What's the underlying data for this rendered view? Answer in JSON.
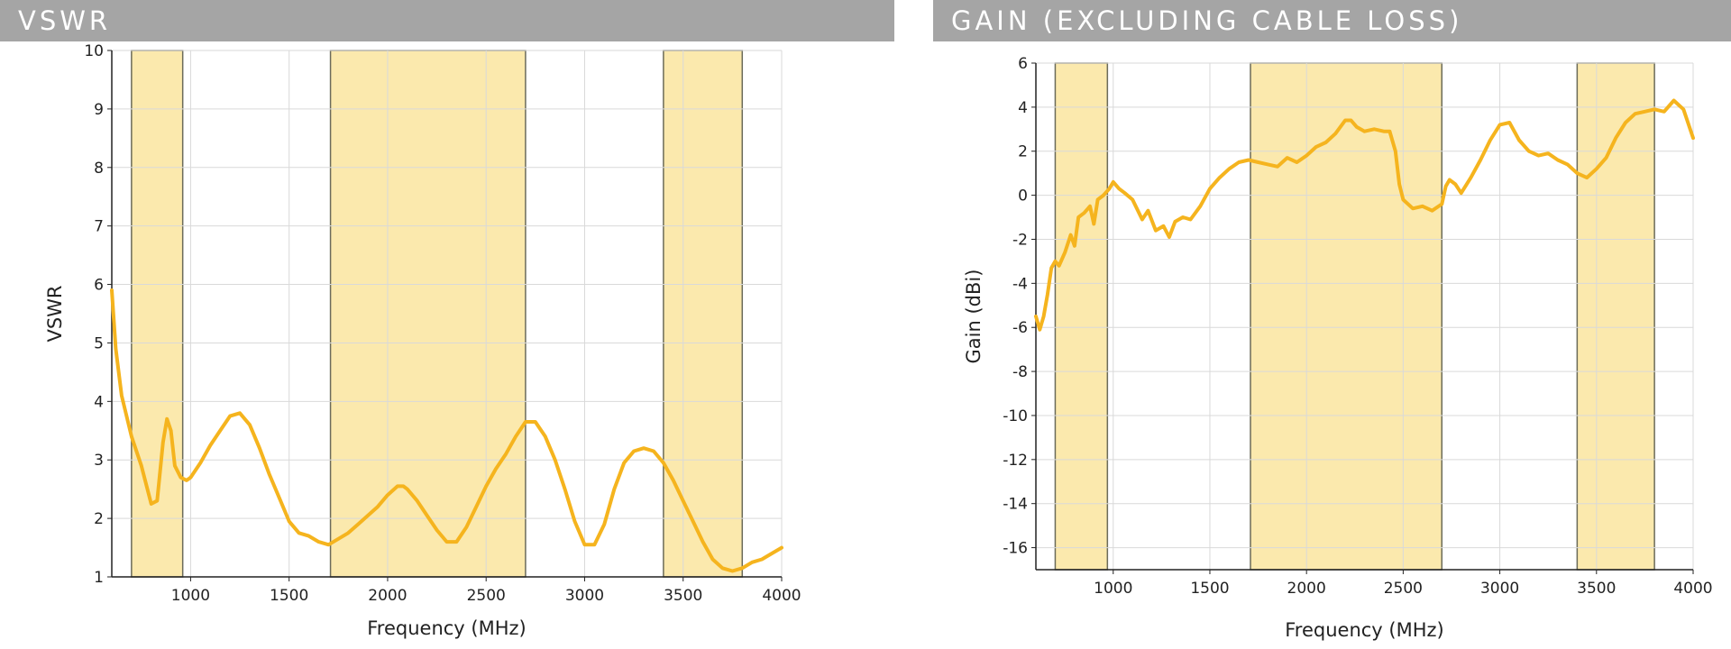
{
  "headers": {
    "left": "VSWR",
    "right": "GAIN (EXCLUDING CABLE LOSS)"
  },
  "colors": {
    "header_bg": "#a5a5a5",
    "band_fill": "#fbe9ad",
    "curve": "#f5b41e",
    "grid": "#d9d9d9"
  },
  "chart_data": [
    {
      "type": "line",
      "title": "VSWR",
      "xlabel": "Frequency (MHz)",
      "ylabel": "VSWR",
      "xlim": [
        600,
        4000
      ],
      "ylim": [
        1,
        10
      ],
      "x_ticks": [
        1000,
        1500,
        2000,
        2500,
        3000,
        3500,
        4000
      ],
      "y_ticks": [
        1,
        2,
        3,
        4,
        5,
        6,
        7,
        8,
        9,
        10
      ],
      "grid": true,
      "shaded_bands": [
        [
          700,
          960
        ],
        [
          1710,
          2700
        ],
        [
          3400,
          3800
        ]
      ],
      "series": [
        {
          "x": [
            600,
            620,
            650,
            700,
            750,
            800,
            830,
            860,
            880,
            900,
            920,
            950,
            980,
            1000,
            1050,
            1100,
            1150,
            1200,
            1250,
            1300,
            1350,
            1400,
            1450,
            1500,
            1550,
            1600,
            1650,
            1700,
            1750,
            1800,
            1850,
            1900,
            1950,
            2000,
            2050,
            2080,
            2100,
            2150,
            2200,
            2250,
            2300,
            2350,
            2400,
            2450,
            2500,
            2550,
            2600,
            2650,
            2700,
            2750,
            2800,
            2850,
            2900,
            2950,
            3000,
            3050,
            3100,
            3150,
            3200,
            3250,
            3300,
            3350,
            3400,
            3450,
            3500,
            3550,
            3600,
            3650,
            3700,
            3750,
            3800,
            3850,
            3900,
            3950,
            4000
          ],
          "y": [
            5.9,
            4.9,
            4.1,
            3.4,
            2.9,
            2.25,
            2.3,
            3.3,
            3.7,
            3.5,
            2.9,
            2.7,
            2.65,
            2.7,
            2.95,
            3.25,
            3.5,
            3.75,
            3.8,
            3.6,
            3.2,
            2.75,
            2.35,
            1.95,
            1.75,
            1.7,
            1.6,
            1.55,
            1.65,
            1.75,
            1.9,
            2.05,
            2.2,
            2.4,
            2.55,
            2.55,
            2.5,
            2.3,
            2.05,
            1.8,
            1.6,
            1.6,
            1.85,
            2.2,
            2.55,
            2.85,
            3.1,
            3.4,
            3.65,
            3.65,
            3.4,
            3.0,
            2.5,
            1.95,
            1.55,
            1.55,
            1.9,
            2.5,
            2.95,
            3.15,
            3.2,
            3.15,
            2.95,
            2.65,
            2.3,
            1.95,
            1.6,
            1.3,
            1.15,
            1.1,
            1.15,
            1.25,
            1.3,
            1.4,
            1.5
          ]
        }
      ]
    },
    {
      "type": "line",
      "title": "GAIN (EXCLUDING CABLE LOSS)",
      "xlabel": "Frequency (MHz)",
      "ylabel": "Gain (dBi)",
      "xlim": [
        600,
        4000
      ],
      "ylim": [
        -17,
        6
      ],
      "x_ticks": [
        1000,
        1500,
        2000,
        2500,
        3000,
        3500,
        4000
      ],
      "y_ticks": [
        6,
        4,
        2,
        0,
        -2,
        -4,
        -6,
        -8,
        -10,
        -12,
        -14,
        -16
      ],
      "grid": true,
      "shaded_bands": [
        [
          700,
          970
        ],
        [
          1710,
          2700
        ],
        [
          3400,
          3800
        ]
      ],
      "series": [
        {
          "x": [
            600,
            620,
            640,
            660,
            680,
            700,
            720,
            750,
            780,
            800,
            820,
            850,
            880,
            900,
            920,
            950,
            980,
            1000,
            1030,
            1060,
            1100,
            1150,
            1180,
            1220,
            1260,
            1290,
            1320,
            1360,
            1400,
            1450,
            1500,
            1550,
            1600,
            1650,
            1700,
            1750,
            1800,
            1850,
            1900,
            1950,
            2000,
            2050,
            2100,
            2150,
            2200,
            2230,
            2260,
            2300,
            2350,
            2400,
            2430,
            2460,
            2480,
            2500,
            2550,
            2600,
            2650,
            2700,
            2720,
            2740,
            2770,
            2800,
            2850,
            2900,
            2950,
            3000,
            3050,
            3100,
            3150,
            3200,
            3250,
            3300,
            3350,
            3400,
            3450,
            3500,
            3550,
            3600,
            3650,
            3700,
            3750,
            3800,
            3850,
            3900,
            3950,
            4000
          ],
          "y": [
            -5.5,
            -6.1,
            -5.5,
            -4.5,
            -3.3,
            -3.0,
            -3.2,
            -2.6,
            -1.8,
            -2.3,
            -1.0,
            -0.8,
            -0.5,
            -1.3,
            -0.2,
            0.0,
            0.3,
            0.6,
            0.3,
            0.1,
            -0.2,
            -1.1,
            -0.7,
            -1.6,
            -1.4,
            -1.9,
            -1.2,
            -1.0,
            -1.1,
            -0.5,
            0.3,
            0.8,
            1.2,
            1.5,
            1.6,
            1.5,
            1.4,
            1.3,
            1.7,
            1.5,
            1.8,
            2.2,
            2.4,
            2.8,
            3.4,
            3.4,
            3.1,
            2.9,
            3.0,
            2.9,
            2.9,
            2.0,
            0.5,
            -0.2,
            -0.6,
            -0.5,
            -0.7,
            -0.4,
            0.4,
            0.7,
            0.5,
            0.1,
            0.8,
            1.6,
            2.5,
            3.2,
            3.3,
            2.5,
            2.0,
            1.8,
            1.9,
            1.6,
            1.4,
            1.0,
            0.8,
            1.2,
            1.7,
            2.6,
            3.3,
            3.7,
            3.8,
            3.9,
            3.8,
            4.3,
            3.9,
            2.6
          ]
        }
      ]
    }
  ]
}
